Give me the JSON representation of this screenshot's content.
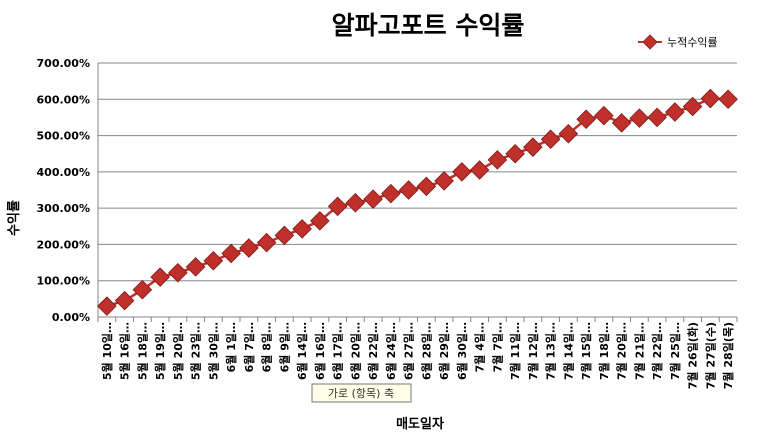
{
  "chart_data": {
    "type": "line",
    "title": "알파고포트 수익률",
    "xlabel": "매도일자",
    "ylabel": "수익률",
    "ylim": [
      0,
      700
    ],
    "yticks": [
      "0.00%",
      "100.00%",
      "200.00%",
      "300.00%",
      "400.00%",
      "500.00%",
      "600.00%",
      "700.00%"
    ],
    "grid": true,
    "legend_position": "top-right",
    "categories": [
      "5월 10일…",
      "5월 16일…",
      "5월 18일…",
      "5월 19일…",
      "5월 20일…",
      "5월 23일…",
      "5월 30일…",
      "6월 1일…",
      "6월 7일…",
      "6월 8일…",
      "6월 9일…",
      "6월 14일…",
      "6월 16일…",
      "6월 17일…",
      "6월 20일…",
      "6월 22일…",
      "6월 24일…",
      "6월 27일…",
      "6월 28일…",
      "6월 29일…",
      "6월 30일…",
      "7월 4일…",
      "7월 7일…",
      "7월 11일…",
      "7월 12일…",
      "7월 13일…",
      "7월 14일…",
      "7월 15일…",
      "7월 18일…",
      "7월 20일…",
      "7월 21일…",
      "7월 22일…",
      "7월 25일…",
      "7월 26일(화)",
      "7월 27일(수)",
      "7월 28일(목)"
    ],
    "series": [
      {
        "name": "누적수익률",
        "color": "#c0302b",
        "values": [
          30,
          45,
          75,
          110,
          122,
          138,
          155,
          175,
          190,
          205,
          225,
          243,
          265,
          305,
          315,
          325,
          340,
          350,
          360,
          375,
          400,
          405,
          433,
          450,
          468,
          490,
          505,
          545,
          555,
          535,
          548,
          550,
          565,
          580,
          602,
          600
        ]
      }
    ]
  },
  "tooltip": "가로 (항목) 축"
}
